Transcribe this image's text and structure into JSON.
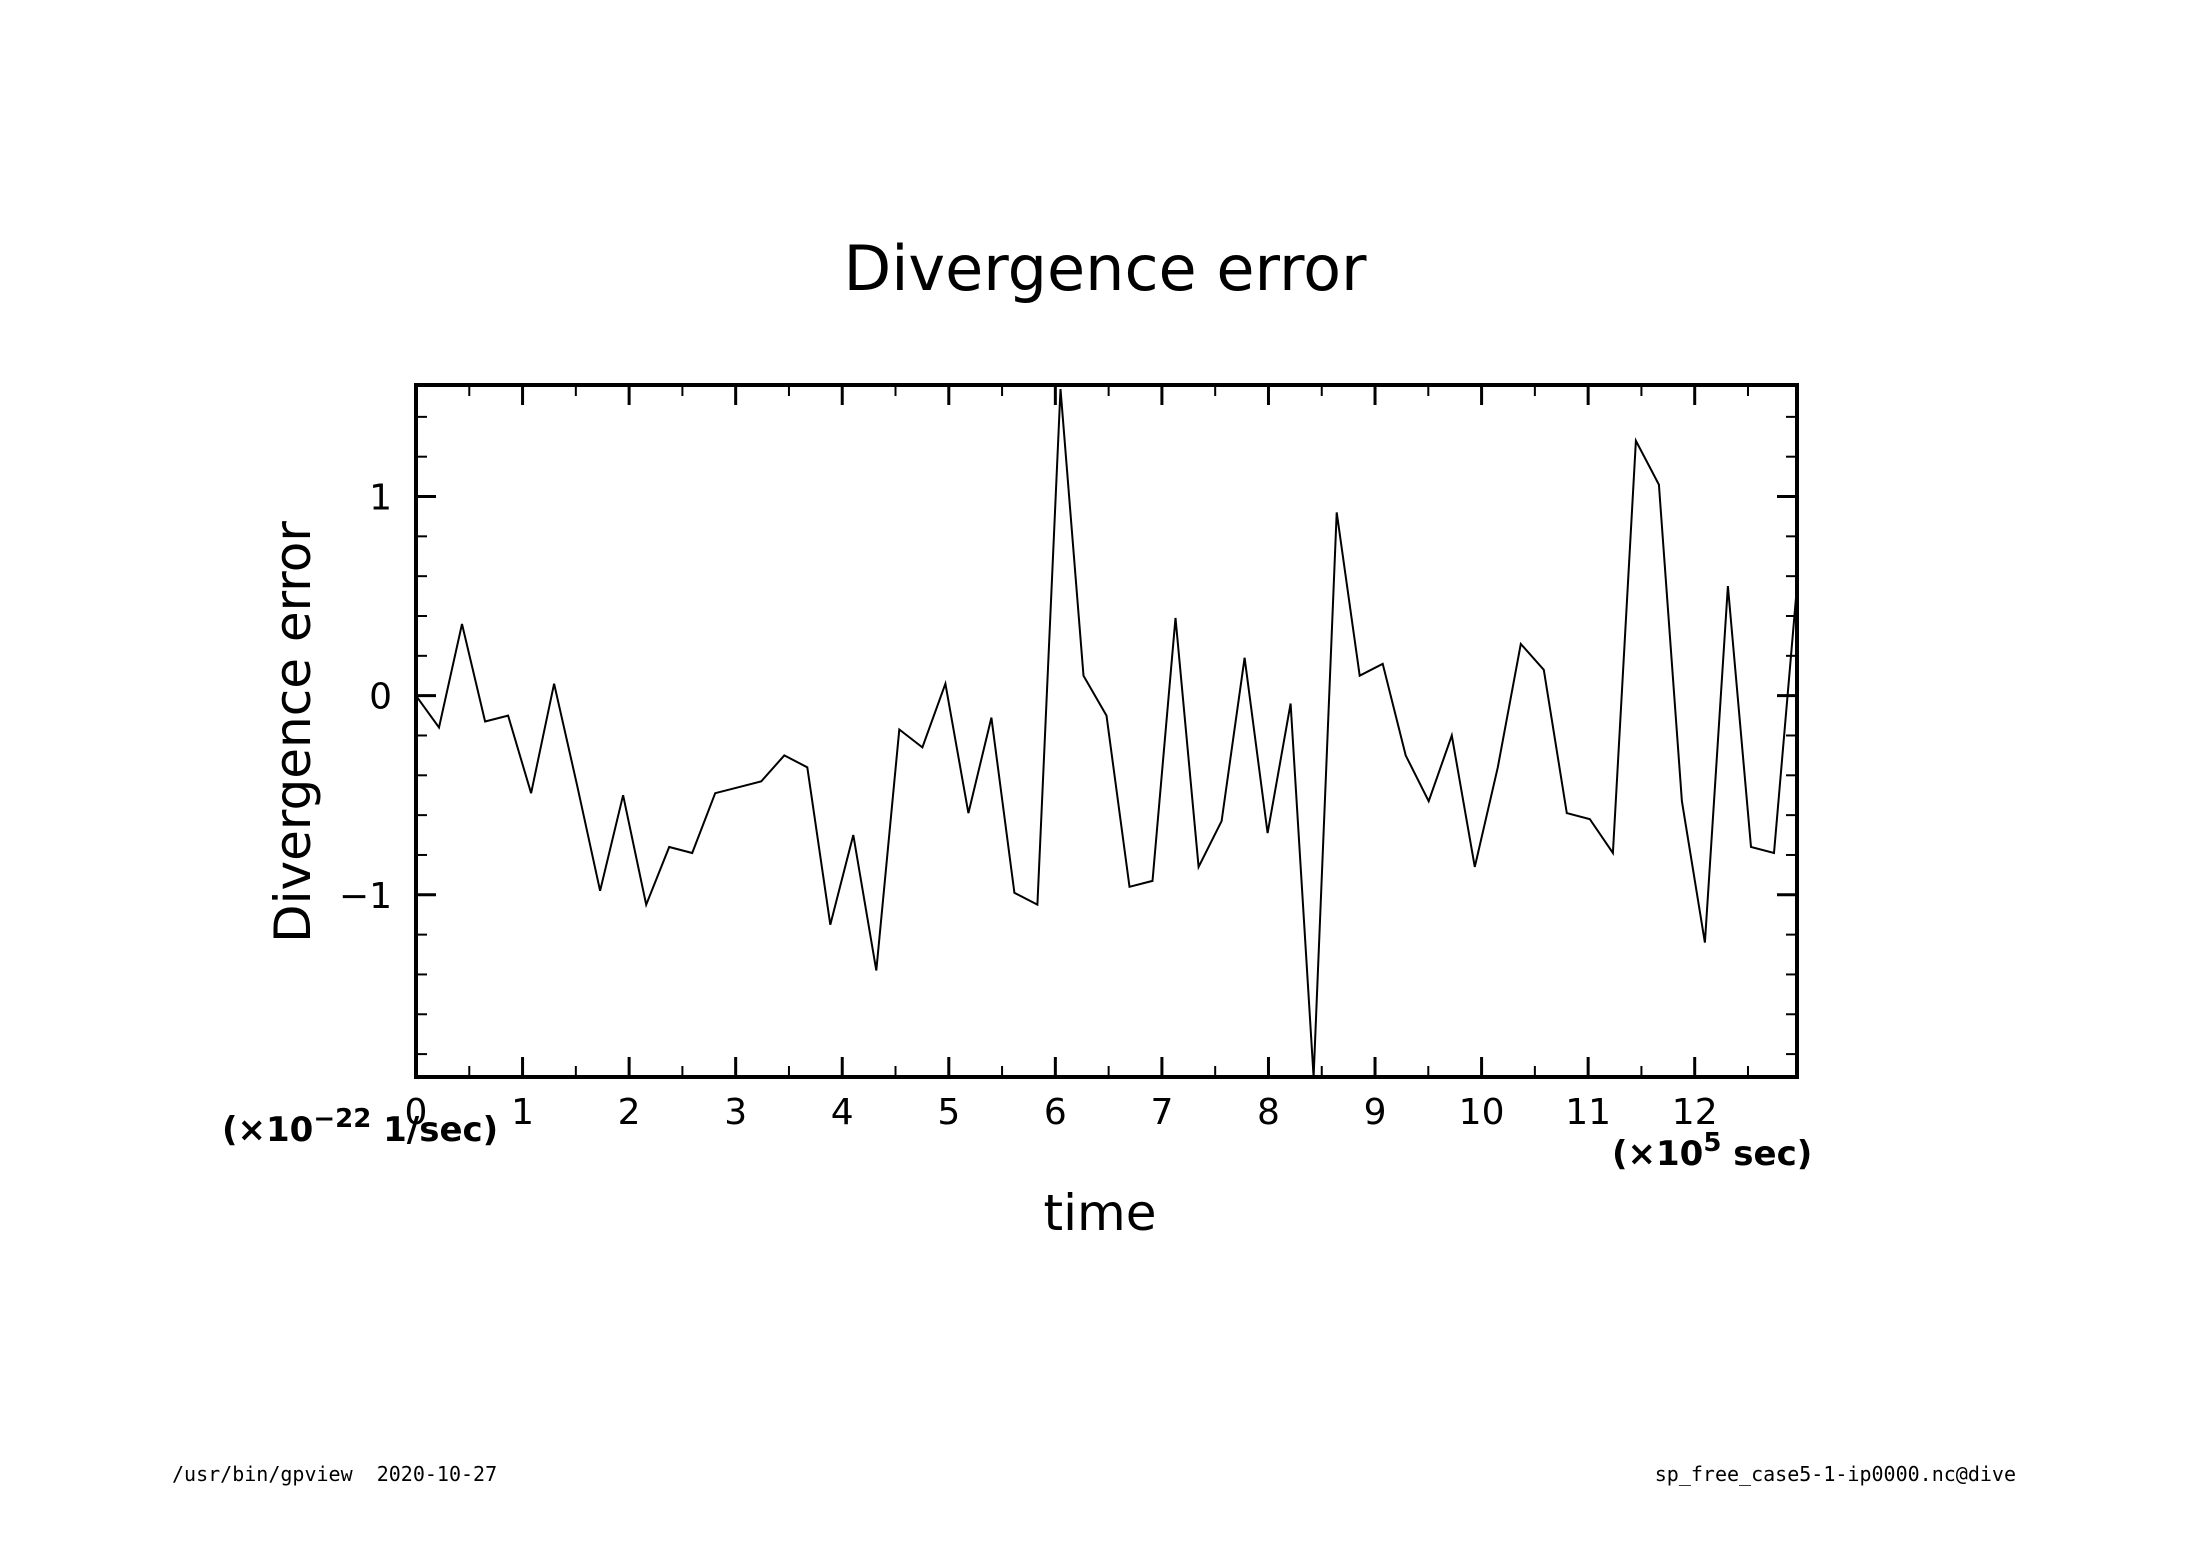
{
  "chart_data": {
    "type": "line",
    "title": "Divergence error",
    "xlabel": "time",
    "ylabel": "Divergence error",
    "x_unit": {
      "prefix": "(×10",
      "exp": "5",
      "suffix": " sec)"
    },
    "y_unit": {
      "prefix": "(×10",
      "exp": "−22",
      "suffix": " 1/sec)"
    },
    "xlim": [
      0,
      12.96
    ],
    "ylim": [
      -1.915,
      1.56
    ],
    "xticks_major": [
      0,
      1,
      2,
      3,
      4,
      5,
      6,
      7,
      8,
      9,
      10,
      11,
      12
    ],
    "xtick_labels": [
      "0",
      "1",
      "2",
      "3",
      "4",
      "5",
      "6",
      "7",
      "8",
      "9",
      "10",
      "11",
      "12"
    ],
    "yticks_major": [
      -1,
      0,
      1
    ],
    "ytick_labels": [
      "−1",
      "0",
      "1"
    ],
    "series": [
      {
        "x": [
          0,
          0.216,
          0.432,
          0.648,
          0.864,
          1.08,
          1.296,
          1.512,
          1.728,
          1.944,
          2.16,
          2.376,
          2.592,
          2.808,
          3.024,
          3.24,
          3.456,
          3.672,
          3.888,
          4.104,
          4.32,
          4.536,
          4.752,
          4.968,
          5.184,
          5.4,
          5.616,
          5.832,
          6.048,
          6.264,
          6.48,
          6.696,
          6.912,
          7.128,
          7.344,
          7.56,
          7.776,
          7.992,
          8.208,
          8.424,
          8.64,
          8.856,
          9.072,
          9.288,
          9.504,
          9.72,
          9.936,
          10.152,
          10.368,
          10.584,
          10.8,
          11.016,
          11.232,
          11.448,
          11.664,
          11.88,
          12.096,
          12.312,
          12.528,
          12.744,
          12.96
        ],
        "y": [
          0,
          -0.16,
          0.36,
          -0.13,
          -0.1,
          -0.49,
          0.06,
          -0.45,
          -0.98,
          -0.5,
          -1.05,
          -0.76,
          -0.79,
          -0.49,
          -0.46,
          -0.43,
          -0.3,
          -0.36,
          -1.15,
          -0.7,
          -1.38,
          -0.17,
          -0.26,
          0.06,
          -0.59,
          -0.11,
          -0.99,
          -1.05,
          1.54,
          0.1,
          -0.1,
          -0.96,
          -0.93,
          0.39,
          -0.86,
          -0.63,
          0.19,
          -0.69,
          -0.04,
          -1.915,
          0.92,
          0.1,
          0.16,
          -0.3,
          -0.53,
          -0.2,
          -0.86,
          -0.36,
          0.26,
          0.13,
          -0.59,
          -0.62,
          -0.79,
          1.28,
          1.06,
          -0.53,
          -1.24,
          0.55,
          -0.76,
          -0.79,
          0.55
        ]
      }
    ],
    "grid": false
  },
  "footer": {
    "left": "/usr/bin/gpview  2020-10-27",
    "right": "sp_free_case5-1-ip0000.nc@dive"
  }
}
